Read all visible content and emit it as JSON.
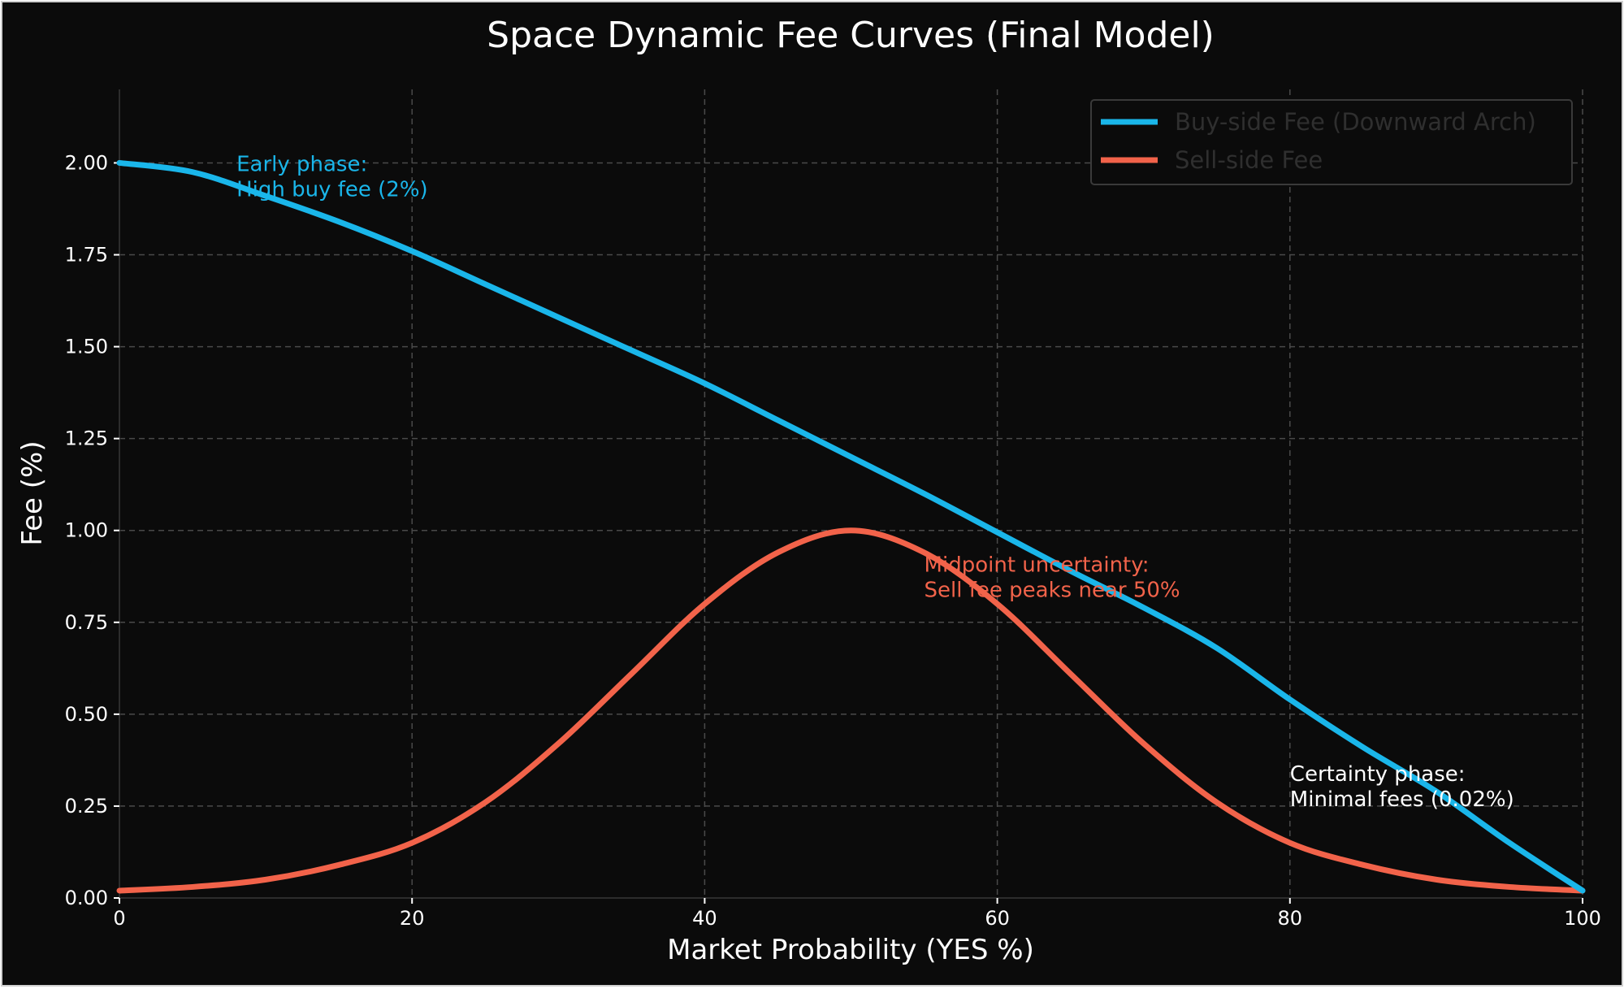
{
  "chart_data": {
    "type": "line",
    "title": "Space Dynamic Fee Curves (Final Model)",
    "xlabel": "Market Probability (YES %)",
    "ylabel": "Fee (%)",
    "xlim": [
      0,
      100
    ],
    "ylim": [
      0,
      2.2
    ],
    "xticks": [
      "0",
      "20",
      "40",
      "60",
      "80",
      "100"
    ],
    "xtick_values": [
      0,
      20,
      40,
      60,
      80,
      100
    ],
    "yticks": [
      "0.00",
      "0.25",
      "0.50",
      "0.75",
      "1.00",
      "1.25",
      "1.50",
      "1.75",
      "2.00"
    ],
    "ytick_values": [
      0,
      0.25,
      0.5,
      0.75,
      1.0,
      1.25,
      1.5,
      1.75,
      2.0
    ],
    "grid": true,
    "legend_position": "top-right",
    "background": "#0b0b0b",
    "x": [
      0,
      5,
      10,
      15,
      20,
      25,
      30,
      35,
      40,
      45,
      50,
      55,
      60,
      65,
      70,
      75,
      80,
      85,
      90,
      95,
      100
    ],
    "series": [
      {
        "name": "Buy-side Fee (Downward Arch)",
        "color": "#1ab6ea",
        "values": [
          2.0,
          1.975,
          1.91,
          1.84,
          1.76,
          1.67,
          1.58,
          1.49,
          1.4,
          1.3,
          1.2,
          1.1,
          0.995,
          0.89,
          0.79,
          0.68,
          0.54,
          0.41,
          0.29,
          0.15,
          0.02
        ]
      },
      {
        "name": "Sell-side Fee",
        "color": "#f2634a",
        "values": [
          0.02,
          0.03,
          0.05,
          0.09,
          0.15,
          0.26,
          0.42,
          0.61,
          0.8,
          0.94,
          1.0,
          0.94,
          0.8,
          0.61,
          0.42,
          0.26,
          0.15,
          0.09,
          0.05,
          0.03,
          0.02
        ]
      }
    ],
    "annotations": [
      {
        "lines": [
          "Early phase:",
          "High buy fee (2%)"
        ],
        "x": 8,
        "y": 2.0,
        "color": "#1ab6ea"
      },
      {
        "lines": [
          "Midpoint uncertainty:",
          "Sell fee peaks near 50%"
        ],
        "x": 55,
        "y": 0.91,
        "color": "#f2634a"
      },
      {
        "lines": [
          "Certainty phase:",
          "Minimal fees (0.02%)"
        ],
        "x": 80,
        "y": 0.34,
        "color": "#ffffff"
      }
    ]
  }
}
